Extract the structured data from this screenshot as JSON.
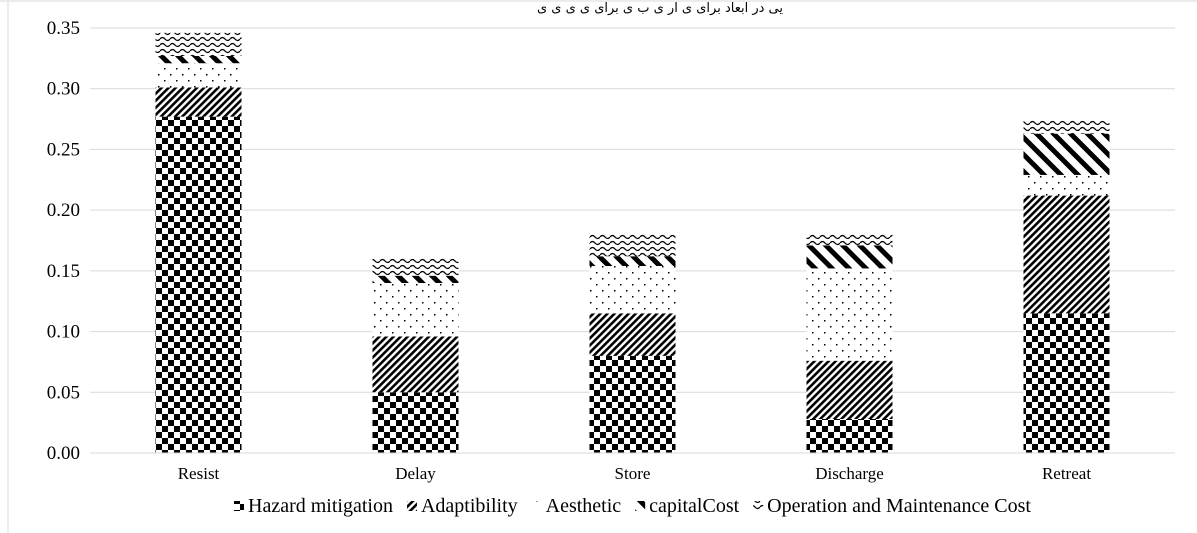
{
  "header_text": "یی در ابعاد برای ی ار ی ب ی برای ی ی ی ی",
  "chart_data": {
    "type": "bar",
    "stacked": true,
    "categories": [
      "Resist",
      "Delay",
      "Store",
      "Discharge",
      "Retreat"
    ],
    "series": [
      {
        "name": "Hazard mitigation",
        "pattern": "checker",
        "values": [
          0.277,
          0.05,
          0.08,
          0.028,
          0.115
        ]
      },
      {
        "name": "Adaptibility",
        "pattern": "diagonal-dense",
        "values": [
          0.024,
          0.046,
          0.035,
          0.048,
          0.097
        ]
      },
      {
        "name": "Aesthetic",
        "pattern": "dots",
        "values": [
          0.02,
          0.044,
          0.039,
          0.076,
          0.017
        ]
      },
      {
        "name": "capitalCost",
        "pattern": "diagonal-wide",
        "values": [
          0.006,
          0.006,
          0.008,
          0.019,
          0.034
        ]
      },
      {
        "name": "Operation and Maintenance Cost",
        "pattern": "waves",
        "values": [
          0.019,
          0.014,
          0.018,
          0.009,
          0.012
        ]
      }
    ],
    "ylim": [
      0,
      0.35
    ],
    "yticks": [
      "0.00",
      "0.05",
      "0.10",
      "0.15",
      "0.20",
      "0.25",
      "0.30",
      "0.35"
    ],
    "grid": true,
    "legend_position": "bottom",
    "colors": {
      "fill": "#000000",
      "background": "#ffffff",
      "grid": "#d9d9d9"
    }
  }
}
